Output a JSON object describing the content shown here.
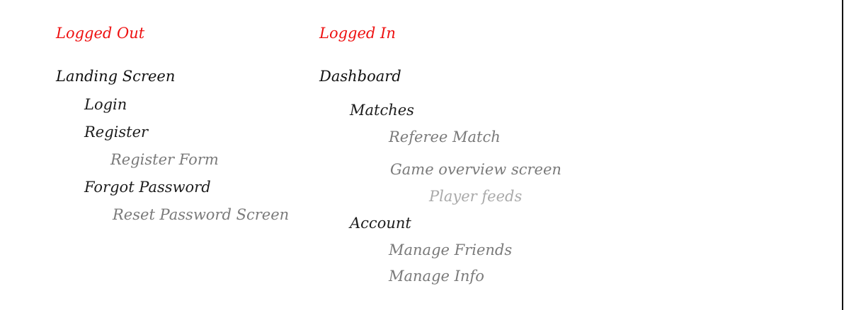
{
  "logged_out": {
    "title": "Logged Out",
    "root": "Landing Screen",
    "login": "Login",
    "register": "Register",
    "register_form": "Register Form",
    "forgot_password": "Forgot Password",
    "reset_password_screen": "Reset Password Screen"
  },
  "logged_in": {
    "title": "Logged In",
    "root": "Dashboard",
    "matches": "Matches",
    "referee_match": "Referee Match",
    "game_overview_screen": "Game overview screen",
    "player_feeds": "Player feeds",
    "account": "Account",
    "manage_friends": "Manage Friends",
    "manage_info": "Manage Info"
  },
  "colors": {
    "section_title": "#ee1111",
    "primary_text": "#111111",
    "secondary_text": "#7a7a7a",
    "tertiary_text": "#aaaaaa"
  }
}
